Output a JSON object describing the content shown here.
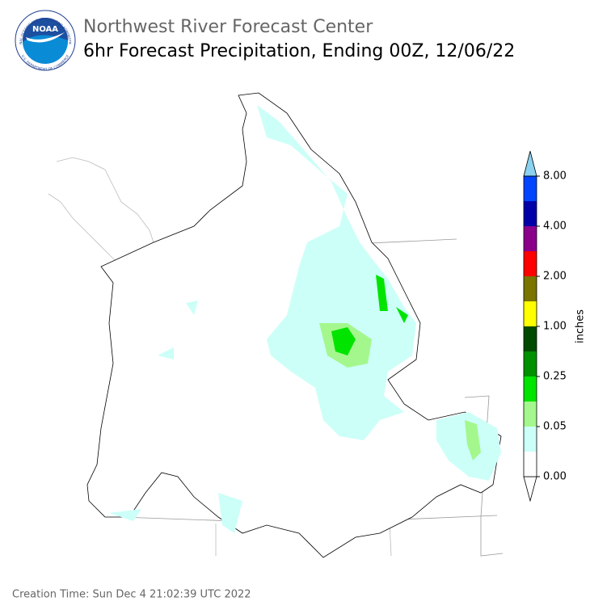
{
  "header": {
    "logo_text": "NOAA",
    "logo_ring_top": "NATIONAL OCEANIC AND ATMOSPHERIC ADMINISTRATION",
    "logo_ring_bottom": "U.S. DEPARTMENT OF COMMERCE",
    "title": "Northwest River Forecast Center",
    "subtitle": "6hr Forecast Precipitation, Ending 00Z, 12/06/22"
  },
  "legend": {
    "label": "inches",
    "colors": [
      "#ffffff",
      "#ccfff8",
      "#a4f78d",
      "#00e400",
      "#009100",
      "#004a00",
      "#ffff00",
      "#7a7400",
      "#ff0000",
      "#8a008a",
      "#0000a8",
      "#0045ff",
      "#8ad2f0"
    ],
    "ticks": [
      {
        "value": 0,
        "label": "0.00"
      },
      {
        "value": 0.05,
        "label": "0.05"
      },
      {
        "value": 0.25,
        "label": "0.25"
      },
      {
        "value": 1,
        "label": "1.00"
      },
      {
        "value": 2,
        "label": "2.00"
      },
      {
        "value": 4,
        "label": "4.00"
      },
      {
        "value": 8,
        "label": "8.00"
      }
    ]
  },
  "footer": {
    "creation_time": "Creation Time: Sun Dec 4 21:02:39 UTC 2022"
  }
}
